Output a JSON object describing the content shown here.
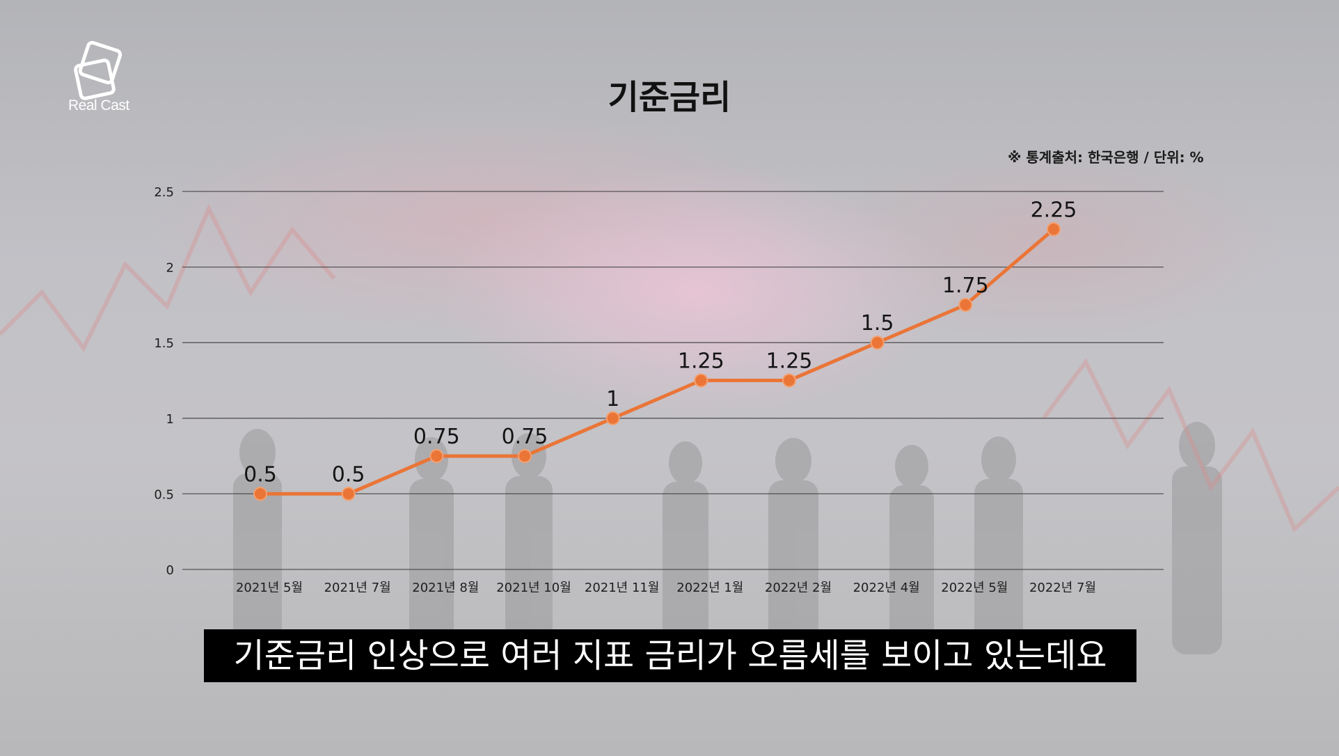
{
  "brand": {
    "name": "Real Cast"
  },
  "subtitle": "기준금리 인상으로 여러 지표 금리가 오름세를 보이고 있는데요",
  "colors": {
    "line": "#ea7537",
    "grid": "#3a3a3a",
    "subtitle_bg": "#000000",
    "subtitle_text": "#ffffff"
  },
  "chart_data": {
    "type": "line",
    "title": "기준금리",
    "source_note": "※ 통계출처: 한국은행 / 단위: %",
    "categories": [
      "2021년 5월",
      "2021년 7월",
      "2021년 8월",
      "2021년 10월",
      "2021년 11월",
      "2022년 1월",
      "2022년 2월",
      "2022년 4월",
      "2022년 5월",
      "2022년 7월"
    ],
    "series": [
      {
        "values": [
          0.5,
          0.5,
          0.75,
          0.75,
          1,
          1.25,
          1.25,
          1.5,
          1.75,
          2.25
        ]
      }
    ],
    "data_labels": [
      "0.5",
      "0.5",
      "0.75",
      "0.75",
      "1",
      "1.25",
      "1.25",
      "1.5",
      "1.75",
      "2.25"
    ],
    "ylim": [
      0,
      2.5
    ],
    "yticks": [
      "0",
      "0.5",
      "1",
      "1.5",
      "2",
      "2.5"
    ],
    "grid": true,
    "legend": "none"
  }
}
